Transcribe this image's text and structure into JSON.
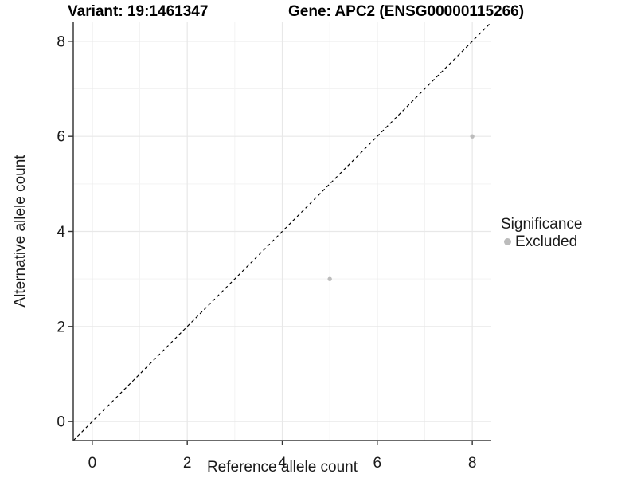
{
  "title": {
    "variant": "Variant: 19:1461347",
    "gene": "Gene: APC2 (ENSG00000115266)"
  },
  "axes": {
    "x_label": "Reference allele count",
    "y_label": "Alternative allele count"
  },
  "legend": {
    "title": "Significance",
    "items": [
      {
        "label": "Excluded",
        "color": "#bcbcbc"
      }
    ]
  },
  "chart_data": {
    "type": "scatter",
    "title": "Variant: 19:1461347 | Gene: APC2 (ENSG00000115266)",
    "xlabel": "Reference allele count",
    "ylabel": "Alternative allele count",
    "xlim": [
      -0.4,
      8.4
    ],
    "ylim": [
      -0.4,
      8.4
    ],
    "x_ticks": [
      0,
      2,
      4,
      6,
      8
    ],
    "y_ticks": [
      0,
      2,
      4,
      6,
      8
    ],
    "x_minor_ticks": [
      1,
      3,
      5,
      7
    ],
    "y_minor_ticks": [
      1,
      3,
      5,
      7
    ],
    "grid": true,
    "legend_position": "right",
    "series": [
      {
        "name": "Excluded",
        "color": "#bcbcbc",
        "points": [
          {
            "x": 5,
            "y": 3
          },
          {
            "x": 8,
            "y": 6
          }
        ]
      }
    ],
    "reference_line": {
      "kind": "identity y=x",
      "style": "dashed",
      "color": "#000000",
      "from": [
        -0.4,
        -0.4
      ],
      "to": [
        8.4,
        8.4
      ]
    }
  },
  "style": {
    "grid_major_color": "#e8e8e8",
    "grid_minor_color": "#f3f3f3",
    "axis_line_color": "#3a3a3a",
    "tick_color": "#333333",
    "point_color": "#bcbcbc",
    "point_radius": 2.7,
    "background": "#ffffff"
  }
}
